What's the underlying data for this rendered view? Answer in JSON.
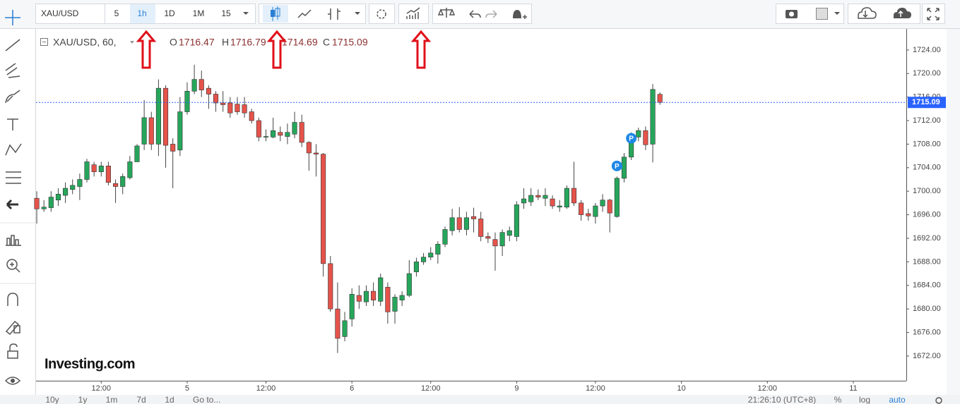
{
  "toolbar": {
    "symbol": "XAU/USD",
    "intervals": [
      "5",
      "1h",
      "1D",
      "1M",
      "15"
    ]
  },
  "legend": {
    "title": "XAU/USD, 60,",
    "labels": [
      "O",
      "H",
      "L",
      "C"
    ]
  },
  "logo": "Investing.com",
  "bottom_bar": {
    "ranges": [
      "10y",
      "1y",
      "1m",
      "7d",
      "1d"
    ],
    "goto": "Go to...",
    "time": "21:26:10 (UTC+8)",
    "options": [
      "%",
      "log",
      "auto"
    ]
  },
  "chart_data": {
    "type": "candlestick",
    "up_color": "#26a65b",
    "down_color": "#e5534b",
    "open": [
      1698.8,
      1697.0,
      1697.2,
      1698.5,
      1699.3,
      1700.3,
      1700.8,
      1702,
      1704.5,
      1703.3,
      1704.3,
      1701.3,
      1700.8,
      1702.3,
      1705,
      1708,
      1712.5,
      1708,
      1717.5,
      1708,
      1707,
      1713.5,
      1717,
      1719,
      1717.5,
      1716.5,
      1715,
      1715,
      1714.8,
      1714.7,
      1713.5,
      1712,
      1709.2,
      1709.2,
      1710,
      1709.3,
      1709.7,
      1711.7,
      1708.3,
      1706.5,
      1706.3,
      1687.7,
      1680,
      1675.3,
      1678.3,
      1682.3,
      1681.2,
      1683,
      1681.3,
      1683.7,
      1679.6,
      1681.5,
      1682.3,
      1686.3,
      1688,
      1688.8,
      1689.3,
      1691,
      1693.3,
      1695.5,
      1693.5,
      1695.7,
      1695.3,
      1692.3,
      1691.8,
      1690.7,
      1692.5,
      1692.3,
      1698,
      1698.2,
      1699.3,
      1698.8,
      1698.7,
      1697.3,
      1697.3,
      1700.5,
      1698,
      1696.2,
      1695.7,
      1697.5,
      1698.5,
      1695.7,
      1702.2,
      1705.8,
      1709.2,
      1710.3,
      1708,
      1716.47
    ],
    "high": [
      1700,
      1698.5,
      1700,
      1700.5,
      1701.5,
      1702,
      1703,
      1705.5,
      1705,
      1705,
      1705,
      1702,
      1703,
      1706,
      1708,
      1715.5,
      1713.5,
      1719,
      1718,
      1709,
      1716,
      1718.5,
      1721.5,
      1720.5,
      1718,
      1717,
      1717,
      1716,
      1716,
      1716,
      1714,
      1712.5,
      1710.5,
      1712.5,
      1711,
      1711.5,
      1713.5,
      1713,
      1708.5,
      1708,
      1706.5,
      1689,
      1684.5,
      1679.5,
      1683.5,
      1684,
      1684,
      1684.5,
      1686,
      1684.5,
      1682.5,
      1683,
      1688.3,
      1688.7,
      1689.5,
      1690.5,
      1691.5,
      1694,
      1697,
      1697.3,
      1696.5,
      1697.2,
      1696.5,
      1693,
      1693,
      1693.5,
      1694,
      1698.3,
      1700.5,
      1700.5,
      1700.3,
      1700.5,
      1699.3,
      1698.5,
      1701,
      1705,
      1698.5,
      1697,
      1698,
      1699.5,
      1698.7,
      1702.5,
      1706.5,
      1710,
      1710.8,
      1711,
      1718.2,
      1716.79
    ],
    "low": [
      1694.5,
      1696.5,
      1696.5,
      1697.5,
      1698,
      1699.5,
      1698.5,
      1701.5,
      1702.5,
      1702.5,
      1701,
      1698,
      1699.5,
      1702,
      1705,
      1707,
      1707,
      1706,
      1704,
      1700.5,
      1706,
      1713,
      1716.5,
      1716,
      1714,
      1713.5,
      1713.5,
      1712.5,
      1713,
      1712.5,
      1711.5,
      1708.5,
      1708.5,
      1709,
      1708.5,
      1708,
      1709,
      1707.5,
      1703.5,
      1702.5,
      1685.5,
      1679.5,
      1672.5,
      1674.5,
      1677,
      1680,
      1680.5,
      1680.5,
      1680.5,
      1677.5,
      1677.5,
      1680.5,
      1682,
      1685.5,
      1687.5,
      1688.3,
      1687.7,
      1690.5,
      1692.5,
      1693,
      1692.5,
      1693,
      1691.5,
      1691.2,
      1686.5,
      1689,
      1691.5,
      1691.5,
      1697,
      1697.5,
      1698.5,
      1697.5,
      1697,
      1696.5,
      1697,
      1697.5,
      1695,
      1695,
      1694.5,
      1696.5,
      1693,
      1695.5,
      1701.5,
      1705.3,
      1708.5,
      1707,
      1704.9,
      1714.69
    ],
    "close": [
      1697.0,
      1697.3,
      1699,
      1699.5,
      1700.5,
      1701,
      1702,
      1705,
      1703.3,
      1704.3,
      1701.5,
      1700.8,
      1702.5,
      1705,
      1707.7,
      1712.5,
      1708,
      1717.5,
      1707.8,
      1706.8,
      1713.5,
      1717,
      1719,
      1717.2,
      1716.5,
      1715,
      1714.7,
      1713.3,
      1713.5,
      1713.3,
      1712,
      1709.2,
      1709.3,
      1710.3,
      1709.5,
      1710,
      1711.7,
      1708.3,
      1706.5,
      1706.3,
      1687.7,
      1680,
      1675,
      1678,
      1682.5,
      1681.3,
      1683,
      1681.5,
      1685.3,
      1679.5,
      1682,
      1682.3,
      1686,
      1688,
      1688.8,
      1689.5,
      1691,
      1693.5,
      1695.5,
      1693.5,
      1695.5,
      1695.3,
      1692.3,
      1692,
      1690.7,
      1693,
      1693.3,
      1697.7,
      1698.7,
      1699.3,
      1699,
      1699.3,
      1697.5,
      1697.5,
      1700.5,
      1698,
      1696,
      1695.8,
      1697.5,
      1698.5,
      1696.3,
      1702.2,
      1705.8,
      1709,
      1710.3,
      1707.9,
      1717.3,
      1715.09
    ],
    "xlim": [
      -0.2,
      121.4
    ],
    "xticks": [
      {
        "value": 9,
        "label": "12:00"
      },
      {
        "value": 21,
        "label": "5"
      },
      {
        "value": 32,
        "label": "12:00"
      },
      {
        "value": 44,
        "label": "6"
      },
      {
        "value": 55,
        "label": "12:00"
      },
      {
        "value": 67,
        "label": "9"
      },
      {
        "value": 78,
        "label": "12:00"
      },
      {
        "value": 90,
        "label": "10"
      },
      {
        "value": 102,
        "label": "12:00"
      },
      {
        "value": 114,
        "label": "11"
      }
    ],
    "ylim": [
      1667.8,
      1727.7
    ],
    "yticks": [
      {
        "value": 1724,
        "label": "1724.00"
      },
      {
        "value": 1720,
        "label": "1720.00"
      },
      {
        "value": 1716,
        "label": "1716.00"
      },
      {
        "value": 1712,
        "label": "1712.00"
      },
      {
        "value": 1708,
        "label": "1708.00"
      },
      {
        "value": 1704,
        "label": "1704.00"
      },
      {
        "value": 1700,
        "label": "1700.00"
      },
      {
        "value": 1696,
        "label": "1696.00"
      },
      {
        "value": 1692,
        "label": "1692.00"
      },
      {
        "value": 1688,
        "label": "1688.00"
      },
      {
        "value": 1684,
        "label": "1684.00"
      },
      {
        "value": 1680,
        "label": "1680.00"
      },
      {
        "value": 1676,
        "label": "1676.00"
      },
      {
        "value": 1672,
        "label": "1672.00"
      }
    ],
    "price_line": {
      "value": 1715.09,
      "label": "1715.09",
      "color": "#2962ff"
    },
    "markers": [
      {
        "x": 81,
        "y": 1704.3,
        "label": "P"
      },
      {
        "x": 83,
        "y": 1709.0,
        "label": "P"
      }
    ],
    "marker_color": "#1e88e5",
    "grid": false
  }
}
